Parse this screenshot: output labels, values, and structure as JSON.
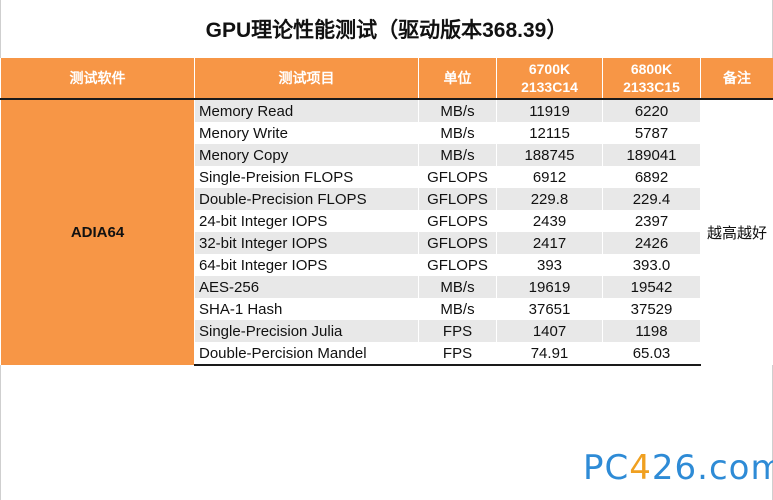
{
  "title": "GPU理论性能测试（驱动版本368.39）",
  "headers": {
    "software": "测试软件",
    "item": "测试项目",
    "unit": "单位",
    "col1_line1": "6700K",
    "col1_line2": "2133C14",
    "col2_line1": "6800K",
    "col2_line2": "2133C15",
    "note": "备注"
  },
  "software": "ADIA64",
  "note": "越高越好",
  "rows": [
    {
      "item": "Memory Read",
      "unit": "MB/s",
      "v1": "11919",
      "v2": "6220"
    },
    {
      "item": "Menory Write",
      "unit": "MB/s",
      "v1": "12115",
      "v2": "5787"
    },
    {
      "item": "Menory Copy",
      "unit": "MB/s",
      "v1": "188745",
      "v2": "189041"
    },
    {
      "item": "Single-Preision FLOPS",
      "unit": "GFLOPS",
      "v1": "6912",
      "v2": "6892"
    },
    {
      "item": "Double-Precision FLOPS",
      "unit": "GFLOPS",
      "v1": "229.8",
      "v2": "229.4"
    },
    {
      "item": "24-bit Integer IOPS",
      "unit": "GFLOPS",
      "v1": "2439",
      "v2": "2397"
    },
    {
      "item": "32-bit Integer IOPS",
      "unit": "GFLOPS",
      "v1": "2417",
      "v2": "2426"
    },
    {
      "item": "64-bit Integer IOPS",
      "unit": "GFLOPS",
      "v1": "393",
      "v2": "393.0"
    },
    {
      "item": "AES-256",
      "unit": "MB/s",
      "v1": "19619",
      "v2": "19542"
    },
    {
      "item": "SHA-1 Hash",
      "unit": "MB/s",
      "v1": "37651",
      "v2": "37529"
    },
    {
      "item": "Single-Precision Julia",
      "unit": "FPS",
      "v1": "1407",
      "v2": "1198"
    },
    {
      "item": "Double-Percision Mandel",
      "unit": "FPS",
      "v1": "74.91",
      "v2": "65.03"
    }
  ],
  "watermark": {
    "part1": "PC",
    "part2": "4",
    "part3": "26",
    "part4": ".com"
  },
  "colors": {
    "header_bg": "#f79646",
    "stripe": "#e8e8e8",
    "logo": "#2e8bd6",
    "logo_accent": "#f0a020"
  }
}
